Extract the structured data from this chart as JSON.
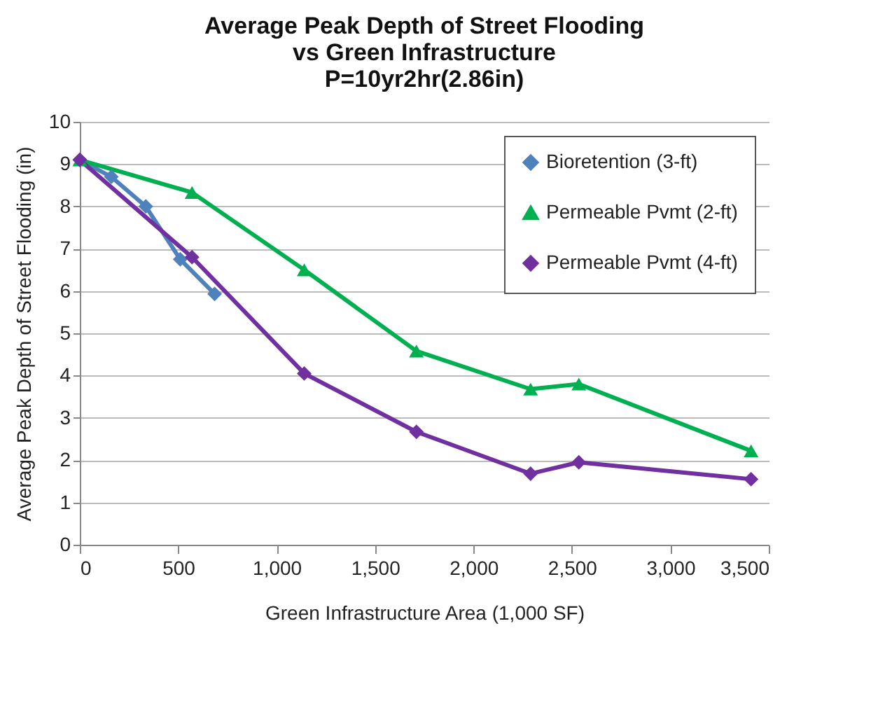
{
  "chart_data": {
    "type": "line",
    "title": "Average Peak Depth of Street Flooding vs Green Infrastructure",
    "subtitle": "P=10yr2hr(2.86in)",
    "xlabel": "Green Infrastructure Area (1,000 SF)",
    "ylabel": "Average Peak Depth of Street Flooding (in)",
    "xlim": [
      0,
      3500
    ],
    "xticks": [
      0,
      {
        "value": 500,
        "label": "500"
      },
      {
        "value": 1000,
        "label": "1,000"
      },
      {
        "value": 1500,
        "label": "1,500"
      },
      {
        "value": 2000,
        "label": "2,000"
      },
      {
        "value": 2500,
        "label": "2,500"
      },
      {
        "value": 3000,
        "label": "3,000"
      },
      {
        "value": 3500,
        "label": "3,500"
      }
    ],
    "ylim": [
      0,
      10
    ],
    "yticks": [
      0,
      1,
      2,
      3,
      4,
      5,
      6,
      7,
      8,
      9,
      10
    ],
    "grid": "y",
    "legend": "top right",
    "line_style": "solid",
    "series": [
      {
        "name": "Bioretention (3-ft)",
        "color": "#4f81bd",
        "marker": "diamond",
        "x": [
          0,
          160,
          335,
          510,
          685
        ],
        "values": [
          9.1,
          8.7,
          8.0,
          6.75,
          5.93
        ]
      },
      {
        "name": "Permeable Pvmt (2-ft)",
        "color": "#00b050",
        "marker": "triangle",
        "x": [
          0,
          570,
          1140,
          1710,
          2290,
          2535,
          3410
        ],
        "values": [
          9.1,
          8.33,
          6.5,
          4.58,
          3.68,
          3.8,
          2.22
        ]
      },
      {
        "name": "Permeable Pvmt (4-ft)",
        "color": "#7030a0",
        "marker": "diamond",
        "x": [
          0,
          570,
          1140,
          1710,
          2290,
          2535,
          3410
        ],
        "values": [
          9.1,
          6.8,
          4.05,
          2.67,
          1.68,
          1.95,
          1.55
        ]
      }
    ]
  }
}
